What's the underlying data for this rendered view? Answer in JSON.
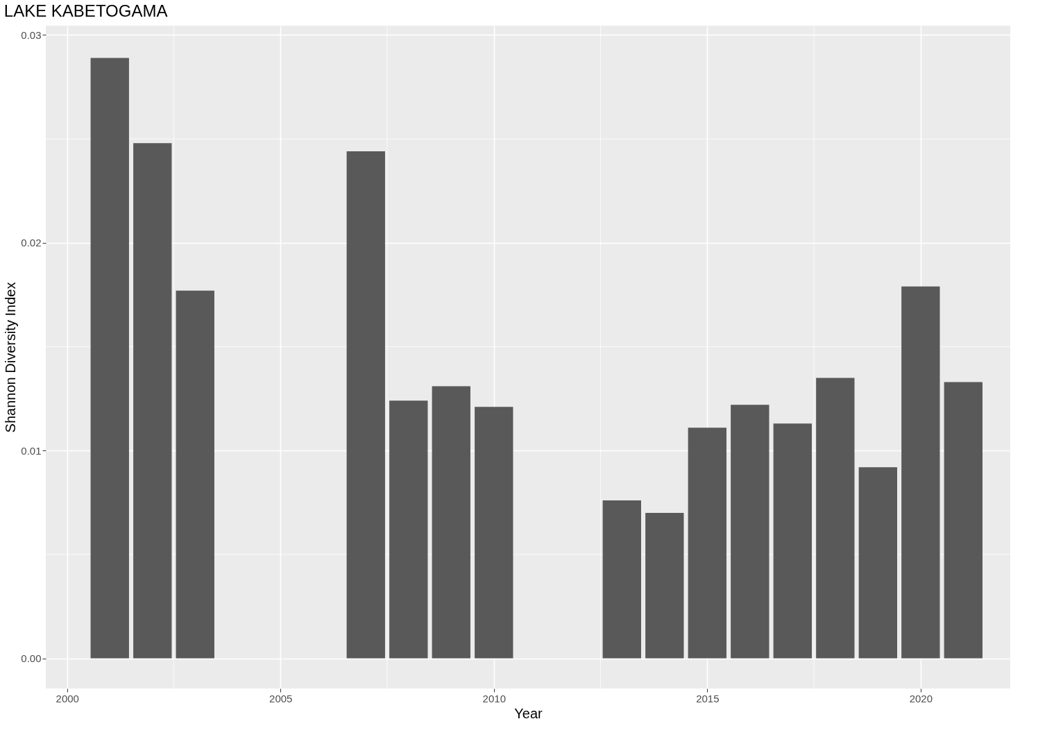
{
  "chart_data": {
    "type": "bar",
    "title": "LAKE KABETOGAMA",
    "xlabel": "Year",
    "ylabel": "Shannon Diversity Index",
    "x": [
      2001,
      2002,
      2003,
      2007,
      2008,
      2009,
      2010,
      2013,
      2014,
      2015,
      2016,
      2017,
      2018,
      2019,
      2020,
      2021
    ],
    "values": [
      0.0289,
      0.0248,
      0.0177,
      0.0244,
      0.0124,
      0.0131,
      0.0121,
      0.0076,
      0.007,
      0.0111,
      0.0122,
      0.0113,
      0.0135,
      0.0092,
      0.0179,
      0.0133
    ],
    "color": "#595959",
    "xlim": [
      1999.5,
      2022.1
    ],
    "xticks": [
      2000,
      2005,
      2010,
      2015,
      2020
    ],
    "ylim": [
      -0.00145,
      0.03045
    ],
    "yticks": [
      {
        "value": 0,
        "label": "0.00"
      },
      {
        "value": 0.01,
        "label": "0.01"
      },
      {
        "value": 0.02,
        "label": "0.02"
      },
      {
        "value": 0.03,
        "label": "0.03"
      }
    ],
    "grid": true
  }
}
